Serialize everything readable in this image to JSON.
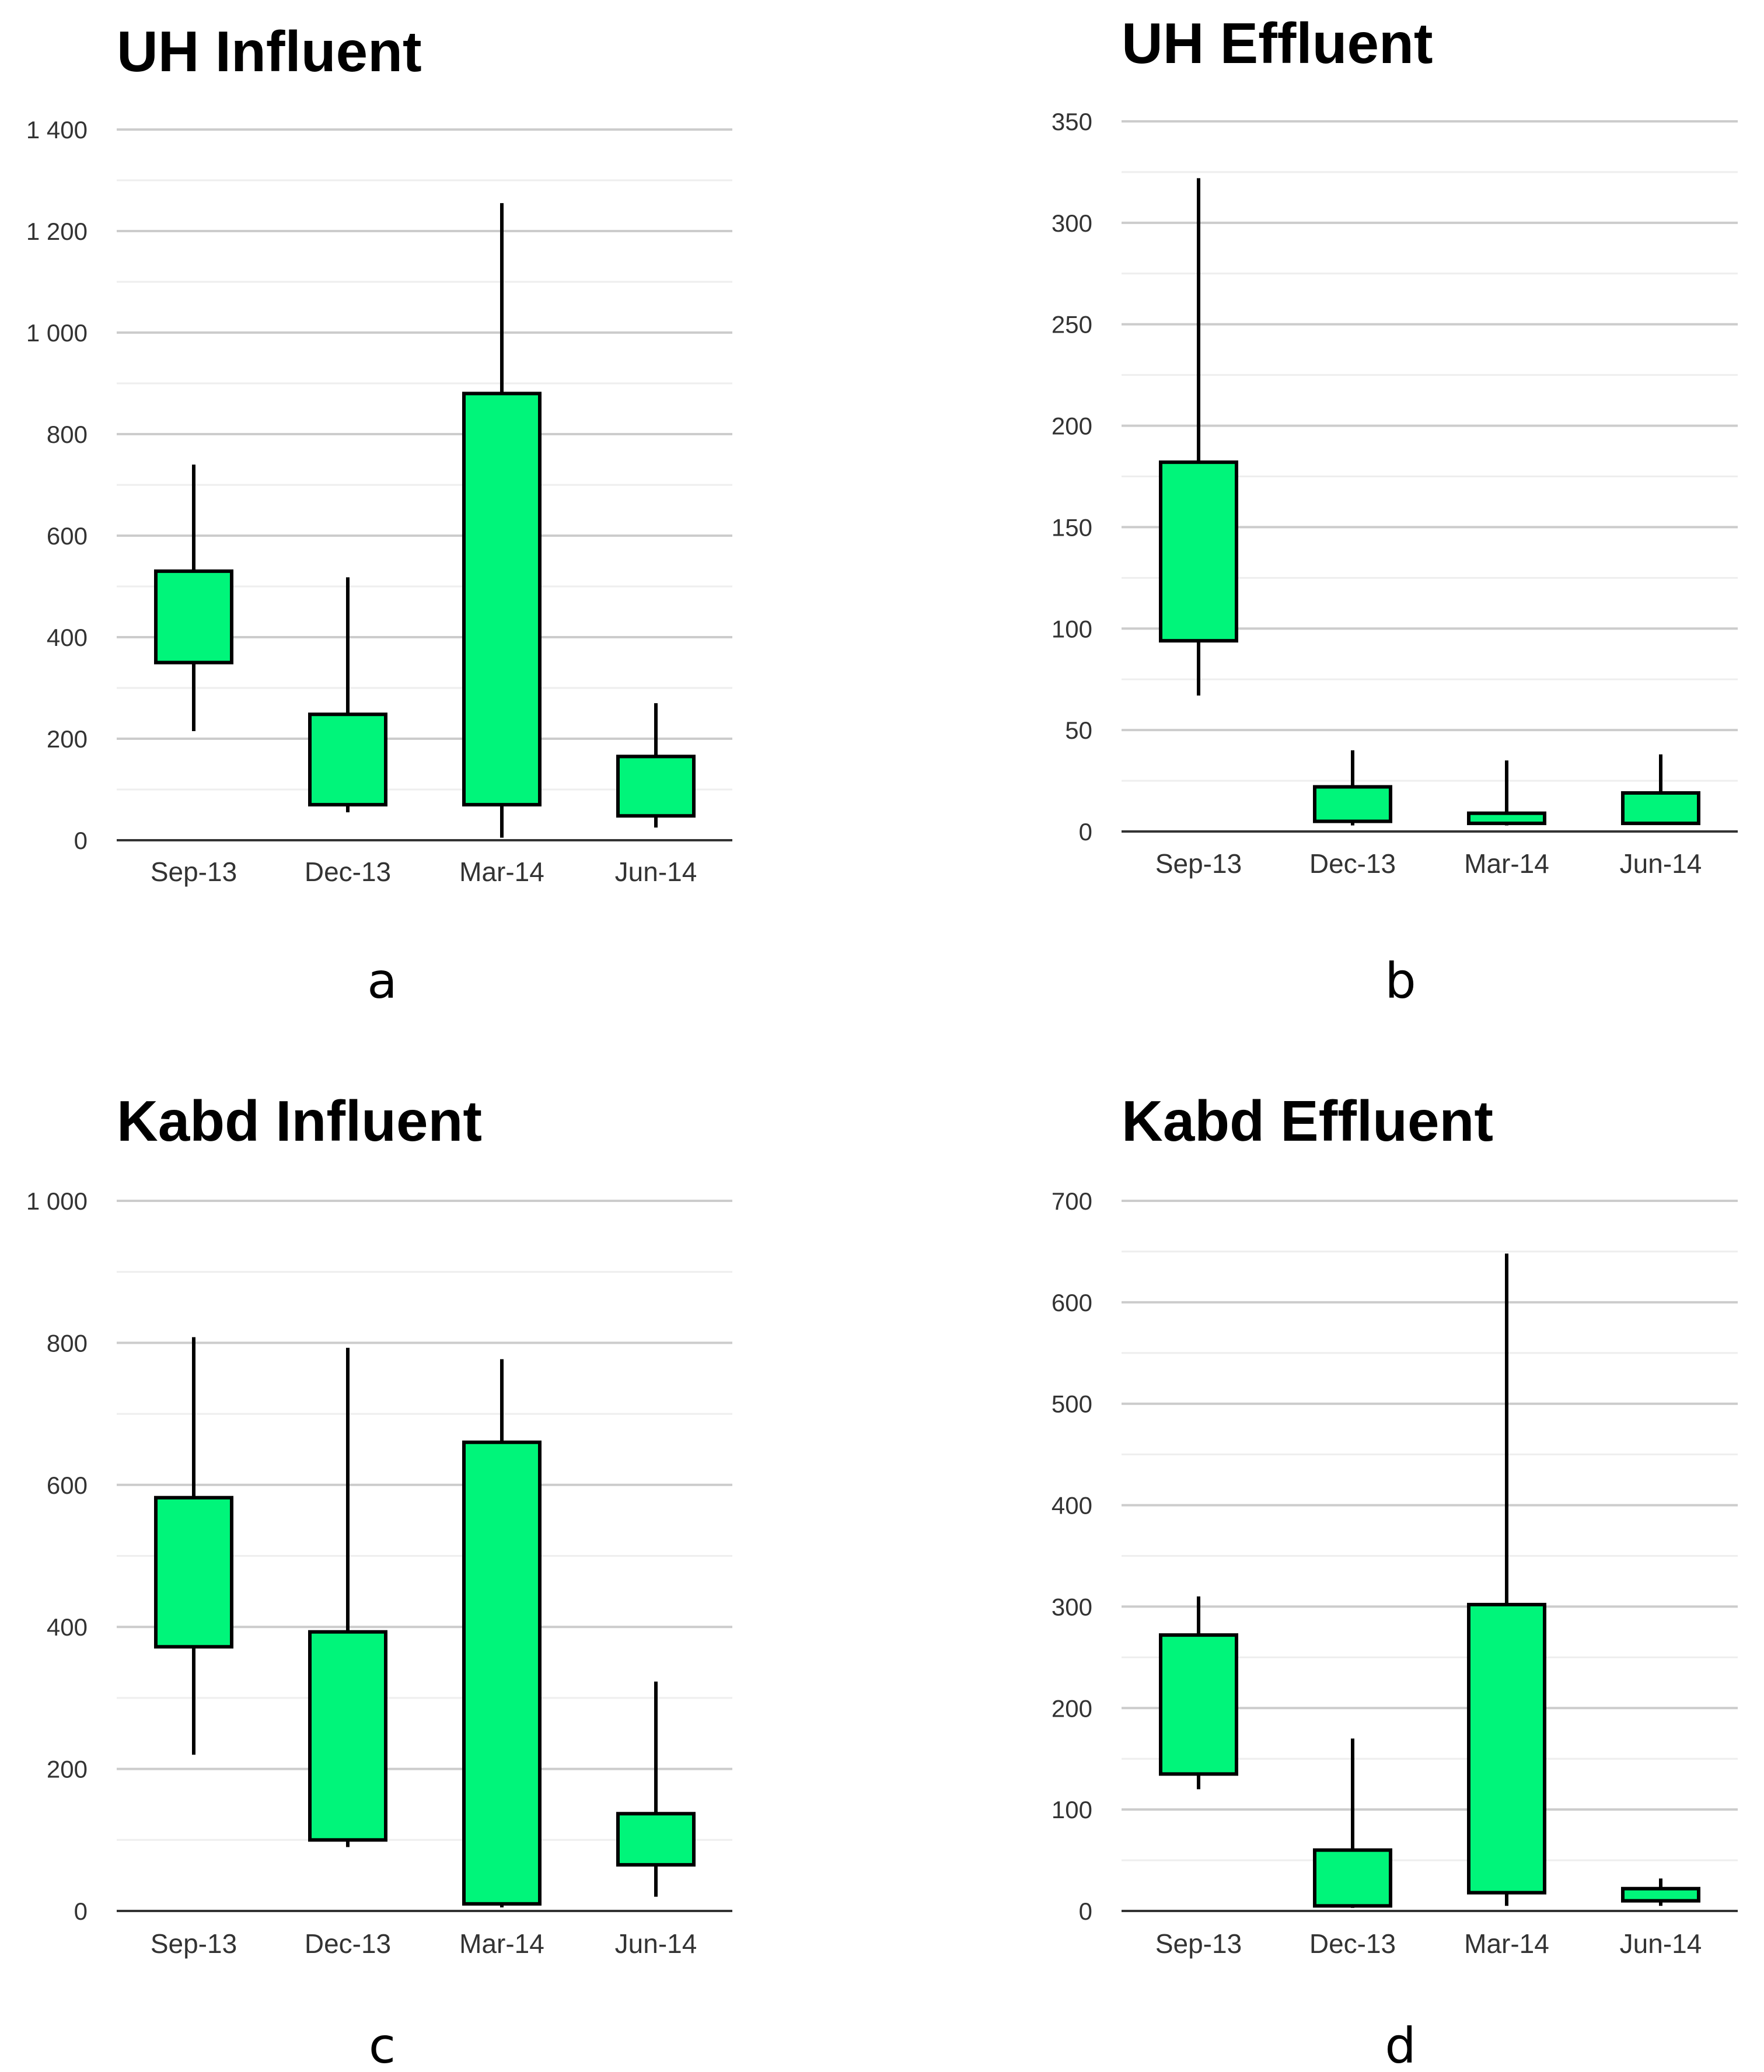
{
  "colors": {
    "box_fill": "#00F57A",
    "box_stroke": "#000000",
    "major_grid": "#CCCCCC",
    "minor_grid": "#EEEEEE",
    "axis": "#333333"
  },
  "chart_data": [
    {
      "type": "candlestick",
      "panel_label": "a",
      "title": "UH Influent",
      "categories": [
        "Sep-13",
        "Dec-13",
        "Mar-14",
        "Jun-14"
      ],
      "ylim": [
        0,
        1400
      ],
      "major_ticks": [
        0,
        200,
        400,
        600,
        800,
        1000,
        1200,
        1400
      ],
      "tick_labels": [
        "0",
        "200",
        "400",
        "600",
        "800",
        "1 000",
        "1 200",
        "1 400"
      ],
      "minor_step": 100,
      "series": [
        {
          "category": "Sep-13",
          "low": 215,
          "open": 350,
          "close": 530,
          "high": 740
        },
        {
          "category": "Dec-13",
          "low": 55,
          "open": 70,
          "close": 248,
          "high": 518
        },
        {
          "category": "Mar-14",
          "low": 5,
          "open": 70,
          "close": 880,
          "high": 1255
        },
        {
          "category": "Jun-14",
          "low": 25,
          "open": 48,
          "close": 165,
          "high": 270
        }
      ]
    },
    {
      "type": "candlestick",
      "panel_label": "b",
      "title": "UH Effluent",
      "categories": [
        "Sep-13",
        "Dec-13",
        "Mar-14",
        "Jun-14"
      ],
      "ylim": [
        0,
        350
      ],
      "major_ticks": [
        0,
        50,
        100,
        150,
        200,
        250,
        300,
        350
      ],
      "tick_labels": [
        "0",
        "50",
        "100",
        "150",
        "200",
        "250",
        "300",
        "350"
      ],
      "minor_step": 25,
      "series": [
        {
          "category": "Sep-13",
          "low": 67,
          "open": 94,
          "close": 182,
          "high": 322
        },
        {
          "category": "Dec-13",
          "low": 3,
          "open": 5,
          "close": 22,
          "high": 40
        },
        {
          "category": "Mar-14",
          "low": 3,
          "open": 4,
          "close": 9,
          "high": 35
        },
        {
          "category": "Jun-14",
          "low": 4,
          "open": 4,
          "close": 19,
          "high": 38
        }
      ]
    },
    {
      "type": "candlestick",
      "panel_label": "c",
      "title": "Kabd Influent",
      "categories": [
        "Sep-13",
        "Dec-13",
        "Mar-14",
        "Jun-14"
      ],
      "ylim": [
        0,
        1000
      ],
      "major_ticks": [
        0,
        200,
        400,
        600,
        800,
        1000
      ],
      "tick_labels": [
        "0",
        "200",
        "400",
        "600",
        "800",
        "1 000"
      ],
      "minor_step": 100,
      "series": [
        {
          "category": "Sep-13",
          "low": 220,
          "open": 372,
          "close": 582,
          "high": 808
        },
        {
          "category": "Dec-13",
          "low": 90,
          "open": 100,
          "close": 393,
          "high": 793
        },
        {
          "category": "Mar-14",
          "low": 5,
          "open": 10,
          "close": 660,
          "high": 777
        },
        {
          "category": "Jun-14",
          "low": 20,
          "open": 65,
          "close": 137,
          "high": 323
        }
      ]
    },
    {
      "type": "candlestick",
      "panel_label": "d",
      "title": "Kabd Effluent",
      "categories": [
        "Sep-13",
        "Dec-13",
        "Mar-14",
        "Jun-14"
      ],
      "ylim": [
        0,
        700
      ],
      "major_ticks": [
        0,
        100,
        200,
        300,
        400,
        500,
        600,
        700
      ],
      "tick_labels": [
        "0",
        "100",
        "200",
        "300",
        "400",
        "500",
        "600",
        "700"
      ],
      "minor_step": 50,
      "series": [
        {
          "category": "Sep-13",
          "low": 120,
          "open": 135,
          "close": 272,
          "high": 310
        },
        {
          "category": "Dec-13",
          "low": 3,
          "open": 5,
          "close": 60,
          "high": 170
        },
        {
          "category": "Mar-14",
          "low": 5,
          "open": 18,
          "close": 302,
          "high": 648
        },
        {
          "category": "Jun-14",
          "low": 5,
          "open": 10,
          "close": 22,
          "high": 32
        }
      ]
    }
  ]
}
